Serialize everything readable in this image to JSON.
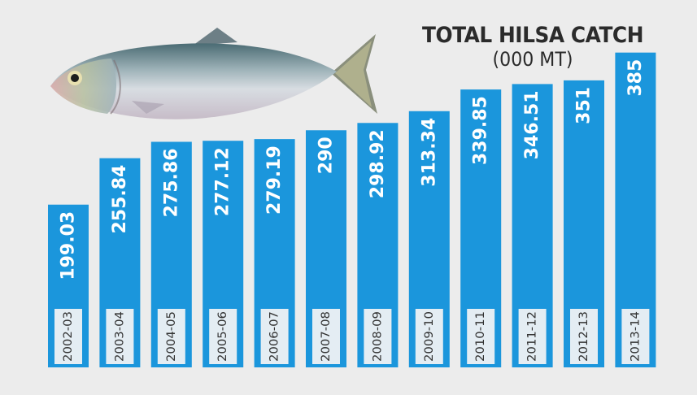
{
  "chart_data": {
    "type": "bar",
    "title": "TOTAL HILSA CATCH",
    "subtitle": "(000 MT)",
    "xlabel": "",
    "ylabel": "",
    "ylim": [
      0,
      400
    ],
    "grid": false,
    "legend": "none",
    "categories": [
      "2002-03",
      "2003-04",
      "2004-05",
      "2005-06",
      "2006-07",
      "2007-08",
      "2008-09",
      "2009-10",
      "2010-11",
      "2011-12",
      "2012-13",
      "2013-14"
    ],
    "values": [
      199.03,
      255.84,
      275.86,
      277.12,
      279.19,
      290,
      298.92,
      313.34,
      339.85,
      346.51,
      351,
      385
    ],
    "value_labels": [
      "199.03",
      "255.84",
      "275.86",
      "277.12",
      "279.19",
      "290",
      "298.92",
      "313.34",
      "339.85",
      "346.51",
      "351",
      "385"
    ]
  },
  "colors": {
    "bar": "#1b96dc",
    "bar_label_text": "#ffffff",
    "category_box": "#e4edf3",
    "category_text": "#333333",
    "background": "#ececec",
    "title": "#2b2b2b"
  },
  "icons": {
    "illustration": "hilsa-fish-icon"
  }
}
